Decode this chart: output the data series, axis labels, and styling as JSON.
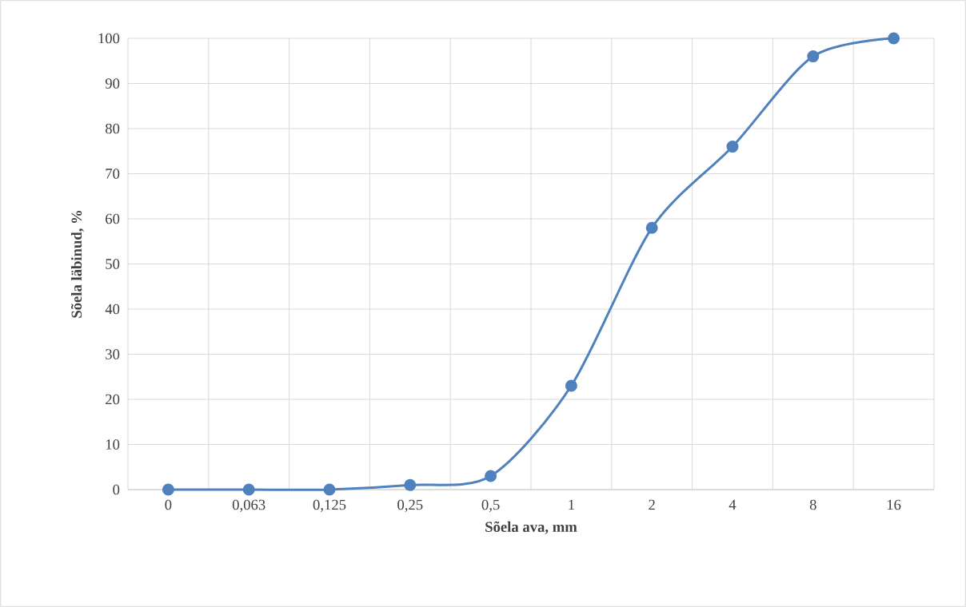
{
  "chart_data": {
    "type": "line",
    "xlabel": "Sõela ava, mm",
    "ylabel": "Sõela läbinud, %",
    "categories": [
      "0",
      "0,063",
      "0,125",
      "0,25",
      "0,5",
      "1",
      "2",
      "4",
      "8",
      "16"
    ],
    "series": [
      {
        "color": "#4f81bd",
        "values": [
          0,
          0,
          0,
          1,
          3,
          23,
          58,
          76,
          96,
          100
        ]
      }
    ],
    "ylim": [
      0,
      100
    ],
    "yticks": [
      0,
      10,
      20,
      30,
      40,
      50,
      60,
      70,
      80,
      90,
      100
    ],
    "grid": true,
    "marker": "circle",
    "line_style": "solid"
  }
}
